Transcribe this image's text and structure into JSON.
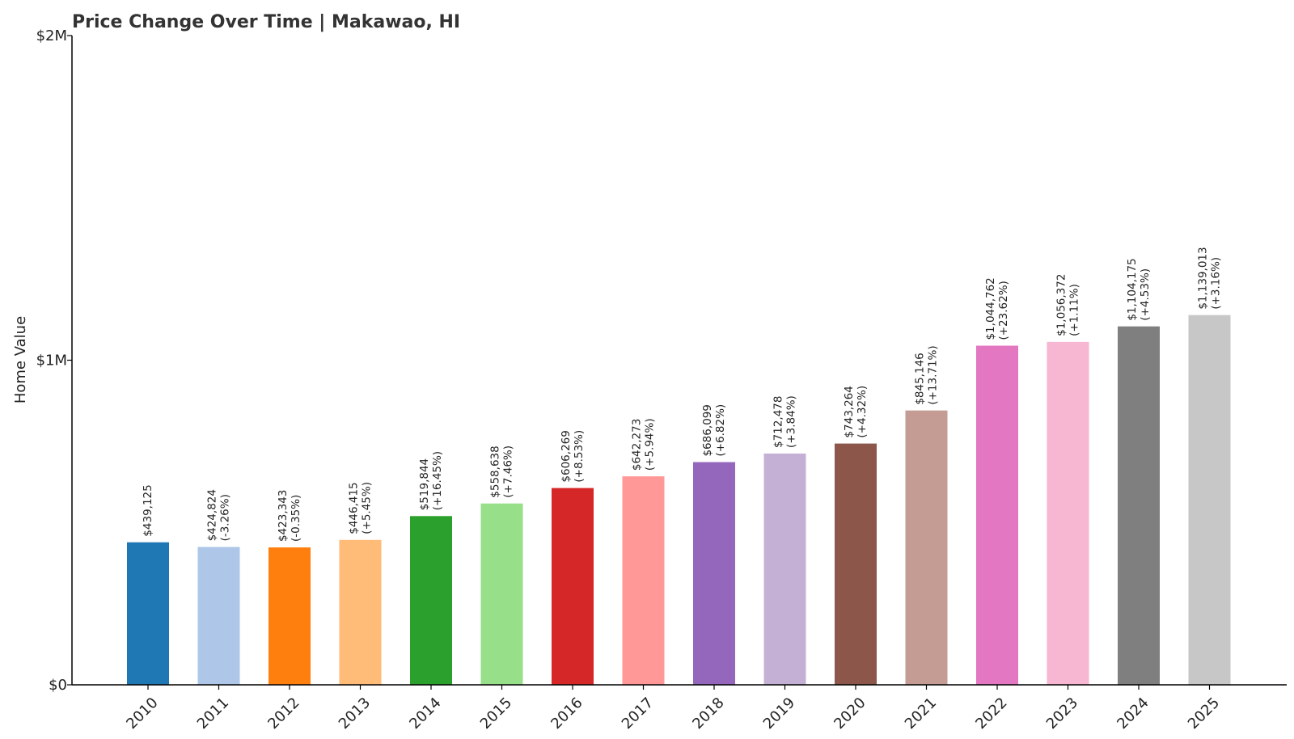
{
  "chart_data": {
    "type": "bar",
    "title": "Price Change Over Time | Makawao, HI",
    "xlabel": "",
    "ylabel": "Home Value",
    "ylim": [
      0,
      2000000
    ],
    "y_ticks": [
      {
        "value": 0,
        "label": "$0"
      },
      {
        "value": 1000000,
        "label": "$1M"
      },
      {
        "value": 2000000,
        "label": "$2M"
      }
    ],
    "categories": [
      "2010",
      "2011",
      "2012",
      "2013",
      "2014",
      "2015",
      "2016",
      "2017",
      "2018",
      "2019",
      "2020",
      "2021",
      "2022",
      "2023",
      "2024",
      "2025"
    ],
    "values": [
      439125,
      424824,
      423343,
      446415,
      519844,
      558638,
      606269,
      642273,
      686099,
      712478,
      743264,
      845146,
      1044762,
      1056372,
      1104175,
      1139013
    ],
    "value_labels": [
      "$439,125",
      "$424,824",
      "$423,343",
      "$446,415",
      "$519,844",
      "$558,638",
      "$606,269",
      "$642,273",
      "$686,099",
      "$712,478",
      "$743,264",
      "$845,146",
      "$1,044,762",
      "$1,056,372",
      "$1,104,175",
      "$1,139,013"
    ],
    "change_labels": [
      "",
      "(-3.26%)",
      "(-0.35%)",
      "(+5.45%)",
      "(+16.45%)",
      "(+7.46%)",
      "(+8.53%)",
      "(+5.94%)",
      "(+6.82%)",
      "(+3.84%)",
      "(+4.32%)",
      "(+13.71%)",
      "(+23.62%)",
      "(+1.11%)",
      "(+4.53%)",
      "(+3.16%)"
    ],
    "colors": [
      "#1f77b4",
      "#aec7e8",
      "#ff7f0e",
      "#ffbb78",
      "#2ca02c",
      "#98df8a",
      "#d62728",
      "#ff9896",
      "#9467bd",
      "#c5b0d5",
      "#8c564b",
      "#c49c94",
      "#e377c2",
      "#f7b6d2",
      "#7f7f7f",
      "#c7c7c7"
    ],
    "grid": false,
    "legend": "none"
  }
}
